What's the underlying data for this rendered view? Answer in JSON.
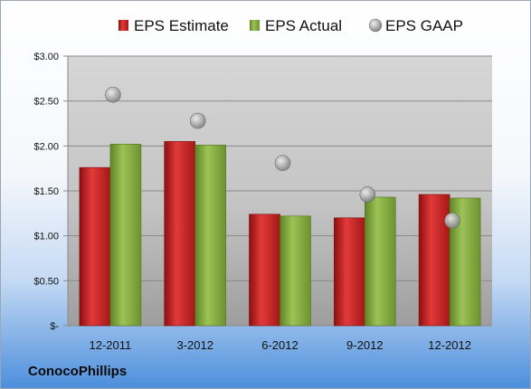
{
  "company": "ConocoPhillips",
  "chart_data": {
    "type": "bar",
    "categories": [
      "12-2011",
      "3-2012",
      "6-2012",
      "9-2012",
      "12-2012"
    ],
    "series": [
      {
        "name": "EPS Estimate",
        "kind": "bar",
        "color": "#cc1f1f",
        "values": [
          1.76,
          2.05,
          1.24,
          1.2,
          1.46
        ]
      },
      {
        "name": "EPS Actual",
        "kind": "bar",
        "color": "#7fa83c",
        "values": [
          2.02,
          2.01,
          1.22,
          1.43,
          1.42
        ]
      },
      {
        "name": "EPS GAAP",
        "kind": "scatter",
        "color": "#a6a6a6",
        "values": [
          2.57,
          2.28,
          1.81,
          1.46,
          1.17
        ]
      }
    ],
    "y_ticks": [
      {
        "value": 0,
        "label": "$-"
      },
      {
        "value": 0.5,
        "label": "$0.50"
      },
      {
        "value": 1.0,
        "label": "$1.00"
      },
      {
        "value": 1.5,
        "label": "$1.50"
      },
      {
        "value": 2.0,
        "label": "$2.00"
      },
      {
        "value": 2.5,
        "label": "$2.50"
      },
      {
        "value": 3.0,
        "label": "$3.00"
      }
    ],
    "ylim": [
      0,
      3
    ],
    "grid": true,
    "legend_position": "top"
  }
}
